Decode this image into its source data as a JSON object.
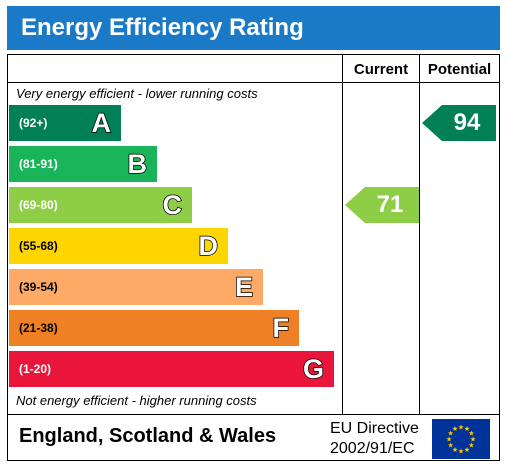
{
  "title": "Energy Efficiency Rating",
  "columns": {
    "current": "Current",
    "potential": "Potential"
  },
  "top_note": "Very energy efficient - lower running costs",
  "bottom_note": "Not energy efficient - higher running costs",
  "footer": {
    "country": "England, Scotland & Wales",
    "directive_line1": "EU Directive",
    "directive_line2": "2002/91/EC"
  },
  "flag_icon": "eu-flag-icon",
  "chart_data": {
    "type": "bar",
    "categories": [
      "A",
      "B",
      "C",
      "D",
      "E",
      "F",
      "G"
    ],
    "ranges": [
      "(92+)",
      "(81-91)",
      "(69-80)",
      "(55-68)",
      "(39-54)",
      "(21-38)",
      "(1-20)"
    ],
    "colors": [
      "#008054",
      "#19b459",
      "#8dce46",
      "#ffd500",
      "#fcaa65",
      "#ef8023",
      "#e9153b"
    ],
    "current": {
      "value": 71,
      "band": "C",
      "color": "#8dce46"
    },
    "potential": {
      "value": 94,
      "band": "A",
      "color": "#008054"
    }
  }
}
